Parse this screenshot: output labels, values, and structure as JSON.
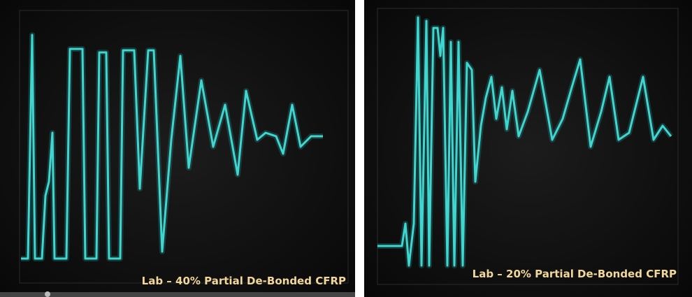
{
  "panels": [
    {
      "caption": "Lab – 40% Partial De-Bonded CFRP"
    },
    {
      "caption": "Lab – 20% Partial De-Bonded CFRP"
    }
  ]
}
